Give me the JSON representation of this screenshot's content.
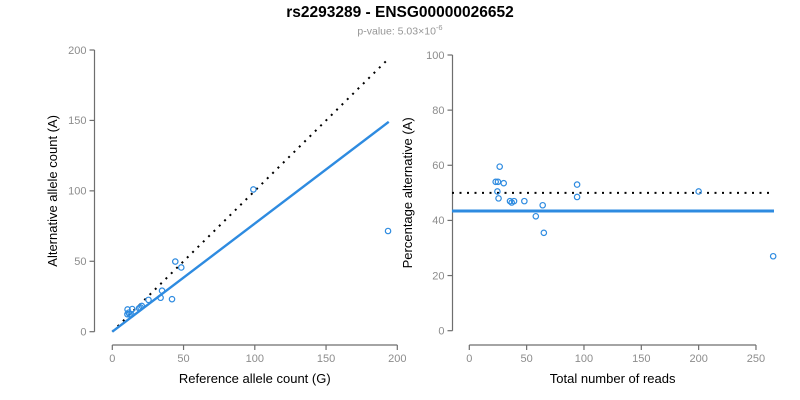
{
  "header": {
    "title": "rs2293289 - ENSG00000026652",
    "subtitle": {
      "base": "p-value: 5.03×10",
      "exponent": "-6"
    }
  },
  "colors": {
    "accent_blue": "#2E8BE0",
    "line_black": "#000000",
    "axis_gray": "#6e6e6e",
    "tick_label_gray": "#8c8c8c",
    "subtitle_gray": "#969696",
    "title_black": "#000000"
  },
  "chart_data": [
    {
      "type": "scatter",
      "name": "allele-counts-panel",
      "xlabel": "Reference allele count (G)",
      "ylabel": "Alternative allele count (A)",
      "xlim": [
        0,
        200
      ],
      "ylim": [
        0,
        200
      ],
      "xticks": [
        0,
        50,
        100,
        150,
        200
      ],
      "yticks": [
        0,
        50,
        100,
        150,
        200
      ],
      "grid": false,
      "legend": false,
      "points": [
        [
          10.7,
          15.8
        ],
        [
          10.6,
          12.4
        ],
        [
          11.5,
          13.5
        ],
        [
          14.0,
          16.1
        ],
        [
          12.1,
          12.4
        ],
        [
          13.3,
          12.2
        ],
        [
          18.8,
          16.7
        ],
        [
          19.8,
          17.2
        ],
        [
          20.7,
          18.3
        ],
        [
          25.4,
          22.6
        ],
        [
          33.9,
          24.1
        ],
        [
          34.9,
          29.1
        ],
        [
          41.9,
          23.1
        ],
        [
          44.2,
          49.8
        ],
        [
          48.4,
          45.6
        ],
        [
          99.0,
          101.0
        ],
        [
          193.5,
          71.5
        ]
      ],
      "lines": [
        {
          "name": "identity-line",
          "style": "dotted",
          "points": [
            [
              0,
              0
            ],
            [
              193,
              193
            ]
          ]
        },
        {
          "name": "fit-line",
          "style": "solid",
          "slope": 0.77,
          "points": [
            [
              0,
              0
            ],
            [
              194,
              149
            ]
          ]
        }
      ]
    },
    {
      "type": "scatter",
      "name": "percentage-panel",
      "xlabel": "Total number of reads",
      "ylabel": "Percentage alternative (A)",
      "xlim": [
        0,
        265
      ],
      "ylim": [
        0,
        100
      ],
      "xticks": [
        0,
        50,
        100,
        150,
        200,
        250
      ],
      "yticks": [
        0,
        20,
        40,
        60,
        80,
        100
      ],
      "grid": false,
      "legend": false,
      "points": [
        [
          26.5,
          59.5
        ],
        [
          23,
          54
        ],
        [
          25,
          54
        ],
        [
          30,
          53.5
        ],
        [
          24.5,
          50.5
        ],
        [
          25.5,
          48
        ],
        [
          35.5,
          47
        ],
        [
          37,
          46.5
        ],
        [
          39,
          47
        ],
        [
          48,
          47
        ],
        [
          58,
          41.5
        ],
        [
          64,
          45.5
        ],
        [
          65,
          35.5
        ],
        [
          94,
          53
        ],
        [
          94,
          48.5
        ],
        [
          200,
          50.5
        ],
        [
          265,
          27
        ]
      ],
      "lines": [
        {
          "name": "null-line",
          "style": "dotted",
          "y": 50
        },
        {
          "name": "fit-line",
          "style": "solid",
          "y": 43.4
        }
      ]
    }
  ]
}
